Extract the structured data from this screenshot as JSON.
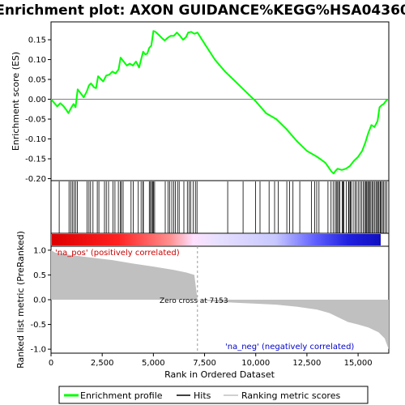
{
  "chart_data": {
    "type": "line",
    "title": "Enrichment plot: AXON GUIDANCE%KEGG%HSA04360",
    "xlabel": "Rank in Ordered Dataset",
    "ylabel_top": "Enrichment score (ES)",
    "ylabel_bottom": "Ranked list metric (PreRanked)",
    "x_range": [
      0,
      16500
    ],
    "x_ticks": [
      0,
      2500,
      5000,
      7500,
      10000,
      12500,
      15000
    ],
    "x_tick_labels": [
      "0",
      "2,500",
      "5,000",
      "7,500",
      "10,000",
      "12,500",
      "15,000"
    ],
    "es_range": [
      -0.205,
      0.195
    ],
    "es_ticks": [
      0.15,
      0.1,
      0.05,
      0.0,
      -0.05,
      -0.1,
      -0.15,
      -0.2
    ],
    "es_tick_labels": [
      "0.15",
      "0.10",
      "0.05",
      "0.00",
      "-0.05",
      "-0.10",
      "-0.15",
      "-0.20"
    ],
    "metric_range": [
      -1.08,
      1.08
    ],
    "metric_ticks": [
      1.0,
      0.5,
      0.0,
      -0.5,
      -1.0
    ],
    "metric_tick_labels": [
      "1.0",
      "0.5",
      "0.0",
      "-0.5",
      "-1.0"
    ],
    "zero_cross": 7153,
    "zero_cross_label": "Zero cross at 7153",
    "pos_label": "'na_pos' (positively correlated)",
    "neg_label": "'na_neg' (negatively correlated)",
    "series": [
      {
        "name": "Enrichment profile",
        "color": "#00ff00",
        "points": [
          [
            0,
            0.0
          ],
          [
            300,
            -0.018
          ],
          [
            450,
            -0.01
          ],
          [
            600,
            -0.017
          ],
          [
            750,
            -0.027
          ],
          [
            850,
            -0.035
          ],
          [
            1000,
            -0.02
          ],
          [
            1100,
            -0.012
          ],
          [
            1200,
            -0.02
          ],
          [
            1300,
            0.025
          ],
          [
            1450,
            0.015
          ],
          [
            1600,
            0.005
          ],
          [
            1750,
            0.02
          ],
          [
            1850,
            0.035
          ],
          [
            1950,
            0.04
          ],
          [
            2100,
            0.03
          ],
          [
            2200,
            0.028
          ],
          [
            2300,
            0.058
          ],
          [
            2450,
            0.05
          ],
          [
            2550,
            0.045
          ],
          [
            2700,
            0.06
          ],
          [
            2850,
            0.062
          ],
          [
            3000,
            0.07
          ],
          [
            3150,
            0.065
          ],
          [
            3300,
            0.075
          ],
          [
            3400,
            0.105
          ],
          [
            3550,
            0.095
          ],
          [
            3700,
            0.085
          ],
          [
            3850,
            0.09
          ],
          [
            4000,
            0.085
          ],
          [
            4150,
            0.095
          ],
          [
            4300,
            0.08
          ],
          [
            4400,
            0.1
          ],
          [
            4500,
            0.12
          ],
          [
            4600,
            0.113
          ],
          [
            4700,
            0.115
          ],
          [
            4800,
            0.13
          ],
          [
            4900,
            0.135
          ],
          [
            5000,
            0.172
          ],
          [
            5100,
            0.17
          ],
          [
            5250,
            0.163
          ],
          [
            5400,
            0.155
          ],
          [
            5550,
            0.148
          ],
          [
            5700,
            0.155
          ],
          [
            5850,
            0.16
          ],
          [
            6000,
            0.16
          ],
          [
            6150,
            0.168
          ],
          [
            6300,
            0.16
          ],
          [
            6450,
            0.15
          ],
          [
            6600,
            0.157
          ],
          [
            6700,
            0.168
          ],
          [
            6850,
            0.17
          ],
          [
            7000,
            0.165
          ],
          [
            7153,
            0.168
          ],
          [
            7500,
            0.14
          ],
          [
            8000,
            0.1
          ],
          [
            8500,
            0.07
          ],
          [
            9000,
            0.045
          ],
          [
            9500,
            0.02
          ],
          [
            10000,
            -0.005
          ],
          [
            10500,
            -0.035
          ],
          [
            11000,
            -0.05
          ],
          [
            11500,
            -0.075
          ],
          [
            12000,
            -0.105
          ],
          [
            12500,
            -0.13
          ],
          [
            13000,
            -0.145
          ],
          [
            13400,
            -0.16
          ],
          [
            13700,
            -0.182
          ],
          [
            13800,
            -0.187
          ],
          [
            13900,
            -0.18
          ],
          [
            14000,
            -0.175
          ],
          [
            14200,
            -0.178
          ],
          [
            14400,
            -0.175
          ],
          [
            14600,
            -0.168
          ],
          [
            14800,
            -0.155
          ],
          [
            15000,
            -0.145
          ],
          [
            15200,
            -0.13
          ],
          [
            15350,
            -0.11
          ],
          [
            15500,
            -0.085
          ],
          [
            15650,
            -0.065
          ],
          [
            15800,
            -0.07
          ],
          [
            15950,
            -0.055
          ],
          [
            16050,
            -0.02
          ],
          [
            16150,
            -0.015
          ],
          [
            16250,
            -0.012
          ],
          [
            16350,
            -0.005
          ],
          [
            16450,
            0.0
          ]
        ]
      }
    ],
    "hits": [
      400,
      880,
      960,
      1040,
      1120,
      1200,
      1290,
      1760,
      1850,
      1930,
      2050,
      2260,
      2340,
      2610,
      2700,
      2810,
      3030,
      3120,
      3290,
      3390,
      3440,
      3520,
      3910,
      4020,
      4260,
      4400,
      4490,
      4510,
      4800,
      4860,
      4910,
      4960,
      5010,
      5060,
      5580,
      5720,
      5800,
      5900,
      6000,
      6070,
      6180,
      6260,
      6490,
      6660,
      6750,
      6820,
      6940,
      7050,
      7130,
      8630,
      9380,
      9990,
      10210,
      10650,
      10920,
      11100,
      11520,
      11650,
      11820,
      12150,
      12720,
      12880,
      12980,
      13090,
      13530,
      13680,
      13780,
      13880,
      13940,
      14000,
      14050,
      14110,
      14220,
      14260,
      14300,
      14420,
      14530,
      14560,
      14620,
      14660,
      14760,
      14850,
      14920,
      15010,
      15100,
      15170,
      15250,
      15320,
      15380,
      15420,
      15470,
      15520,
      15560,
      15620,
      15680,
      15740,
      15800,
      15870,
      15920,
      15980,
      16020,
      16080,
      16130,
      16190,
      16250,
      16320,
      16400
    ],
    "metric_curve": [
      [
        0,
        1.0
      ],
      [
        200,
        0.95
      ],
      [
        1000,
        0.9
      ],
      [
        2000,
        0.85
      ],
      [
        3000,
        0.8
      ],
      [
        4000,
        0.73
      ],
      [
        5000,
        0.67
      ],
      [
        6000,
        0.6
      ],
      [
        6600,
        0.55
      ],
      [
        7000,
        0.5
      ],
      [
        7153,
        0.0
      ],
      [
        8000,
        -0.04
      ],
      [
        9000,
        -0.06
      ],
      [
        10000,
        -0.08
      ],
      [
        11000,
        -0.1
      ],
      [
        12000,
        -0.14
      ],
      [
        13000,
        -0.2
      ],
      [
        13600,
        -0.27
      ],
      [
        14000,
        -0.35
      ],
      [
        14500,
        -0.45
      ],
      [
        15000,
        -0.5
      ],
      [
        15500,
        -0.56
      ],
      [
        16000,
        -0.66
      ],
      [
        16300,
        -0.78
      ],
      [
        16450,
        -0.95
      ],
      [
        16500,
        -1.0
      ]
    ],
    "legend": [
      "Enrichment profile",
      "Hits",
      "Ranking metric scores"
    ],
    "legend_placement": "bottom",
    "colors": {
      "profile": "#00ff00",
      "hits": "#000000",
      "metric_fill": "#c0c0c0",
      "pos_end": "#ff0000",
      "neg_end": "#0000ff",
      "mid": "#ffffff"
    }
  }
}
